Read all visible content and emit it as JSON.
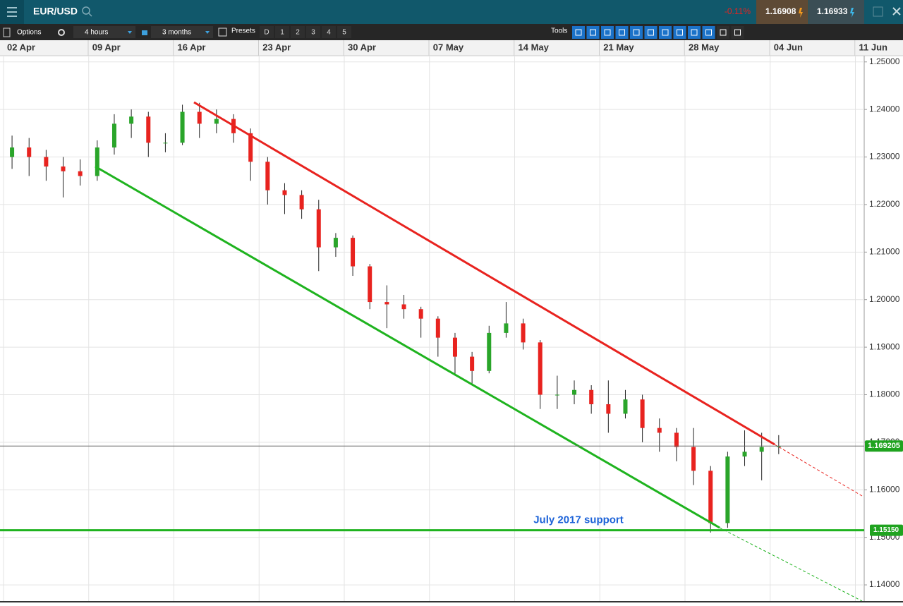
{
  "header": {
    "symbol": "EUR/USD",
    "change": "-0.11%",
    "sell": "1.16908",
    "buy": "1.16933"
  },
  "toolbar": {
    "options": "Options",
    "interval": "4 hours",
    "range": "3 months",
    "presets": "Presets",
    "preset_buttons": [
      "D",
      "1",
      "2",
      "3",
      "4",
      "5"
    ],
    "tools": "Tools"
  },
  "chart_data": {
    "type": "candlestick",
    "categories": [
      "02 Apr",
      null,
      null,
      null,
      null,
      "09 Apr",
      null,
      null,
      null,
      null,
      "16 Apr",
      null,
      null,
      null,
      null,
      "23 Apr",
      null,
      null,
      null,
      null,
      "30 Apr",
      null,
      null,
      null,
      null,
      "07 May",
      null,
      null,
      null,
      null,
      "14 May",
      null,
      null,
      null,
      null,
      "21 May",
      null,
      null,
      null,
      null,
      "28 May",
      null,
      null,
      null,
      null,
      "04 Jun",
      null,
      null,
      null,
      null,
      "11 Jun"
    ],
    "open": [
      1.23,
      1.232,
      1.23,
      1.228,
      1.227,
      1.226,
      1.232,
      1.237,
      1.2385,
      1.233,
      1.233,
      1.2395,
      1.237,
      1.238,
      1.235,
      1.229,
      1.223,
      1.222,
      1.219,
      1.211,
      1.213,
      1.207,
      1.1995,
      1.199,
      1.198,
      1.196,
      1.192,
      1.188,
      1.185,
      1.193,
      1.195,
      1.191,
      1.18,
      1.18,
      1.181,
      1.178,
      1.176,
      1.179,
      1.173,
      1.172,
      1.169,
      1.164,
      1.153,
      1.167,
      1.168,
      1.169,
      null,
      null,
      null,
      null,
      null
    ],
    "high": [
      1.2345,
      1.234,
      1.2315,
      1.23,
      1.2295,
      1.2335,
      1.239,
      1.24,
      1.2395,
      1.235,
      1.241,
      1.2414,
      1.24,
      1.239,
      1.236,
      1.23,
      1.2245,
      1.223,
      1.221,
      1.214,
      1.2135,
      1.2075,
      1.203,
      1.201,
      1.1985,
      1.1965,
      1.193,
      1.189,
      1.1945,
      1.1995,
      1.196,
      1.1915,
      1.184,
      1.183,
      1.182,
      1.183,
      1.181,
      1.18,
      1.175,
      1.173,
      1.173,
      1.165,
      1.168,
      1.1725,
      1.172,
      1.1715,
      null,
      null,
      null,
      null,
      null
    ],
    "low": [
      1.2275,
      1.226,
      1.225,
      1.2215,
      1.224,
      1.225,
      1.2305,
      1.234,
      1.23,
      1.231,
      1.2325,
      1.234,
      1.235,
      1.233,
      1.225,
      1.22,
      1.218,
      1.217,
      1.206,
      1.209,
      1.205,
      1.198,
      1.194,
      1.196,
      1.192,
      1.188,
      1.184,
      1.182,
      1.1845,
      1.192,
      1.1895,
      1.177,
      1.177,
      1.178,
      1.176,
      1.172,
      1.175,
      1.17,
      1.168,
      1.166,
      1.161,
      1.151,
      1.152,
      1.165,
      1.162,
      1.1675,
      null,
      null,
      null,
      null,
      null
    ],
    "close": [
      1.232,
      1.23,
      1.228,
      1.227,
      1.226,
      1.232,
      1.237,
      1.2385,
      1.233,
      1.233,
      1.2395,
      1.237,
      1.238,
      1.235,
      1.229,
      1.223,
      1.222,
      1.219,
      1.211,
      1.213,
      1.207,
      1.1995,
      1.199,
      1.198,
      1.196,
      1.192,
      1.188,
      1.185,
      1.193,
      1.195,
      1.191,
      1.18,
      1.18,
      1.181,
      1.178,
      1.176,
      1.179,
      1.173,
      1.172,
      1.169,
      1.164,
      1.153,
      1.167,
      1.168,
      1.169,
      1.1692,
      null,
      null,
      null,
      null,
      null
    ],
    "up_color": "#2aa52a",
    "down_color": "#e8231f",
    "ylim": [
      1.1363,
      1.2513
    ],
    "yticks": [
      {
        "value": 1.25,
        "label": "1.25000"
      },
      {
        "value": 1.24,
        "label": "1.24000"
      },
      {
        "value": 1.23,
        "label": "1.23000"
      },
      {
        "value": 1.22,
        "label": "1.22000"
      },
      {
        "value": 1.21,
        "label": "1.21000"
      },
      {
        "value": 1.2,
        "label": "1.20000"
      },
      {
        "value": 1.19,
        "label": "1.19000"
      },
      {
        "value": 1.18,
        "label": "1.18000"
      },
      {
        "value": 1.17,
        "label": "1.17000"
      },
      {
        "value": 1.16,
        "label": "1.16000"
      },
      {
        "value": 1.15,
        "label": "1.15000"
      },
      {
        "value": 1.14,
        "label": "1.14000"
      }
    ],
    "grid": true,
    "current_price": 1.169205,
    "support": {
      "value": 1.1515,
      "label": "1.15150"
    },
    "annotation": "July 2017 support"
  }
}
